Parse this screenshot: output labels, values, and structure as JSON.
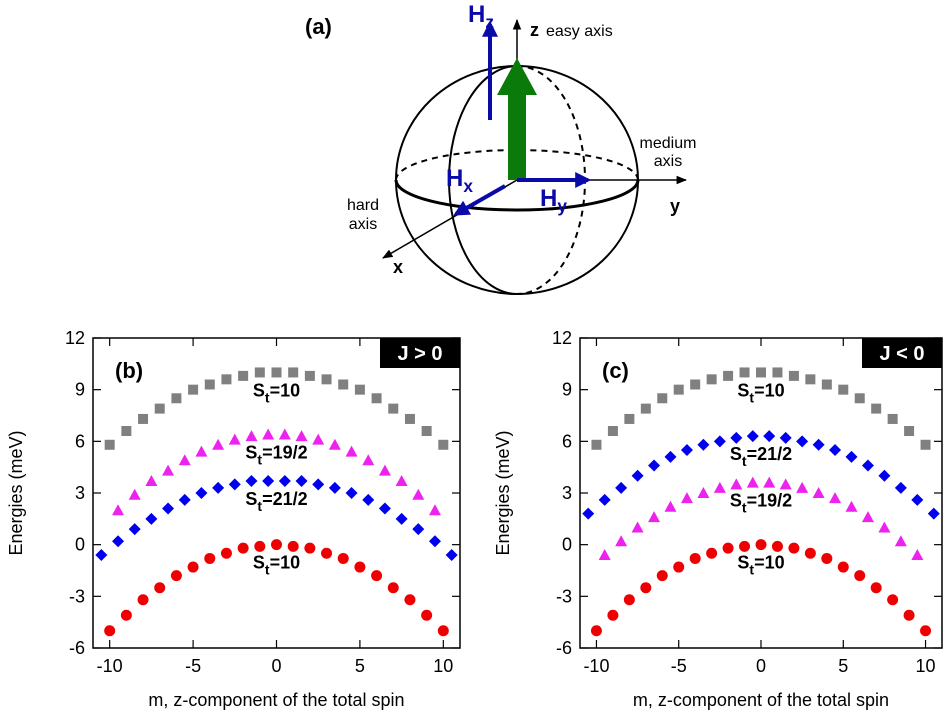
{
  "diagram": {
    "label": "(a)",
    "field_z": {
      "base": "H",
      "sub": "z"
    },
    "field_x": {
      "base": "H",
      "sub": "x"
    },
    "field_y": {
      "base": "H",
      "sub": "y"
    },
    "z_axis": "z",
    "z_axis_name": "easy axis",
    "y_axis": "y",
    "y_axis_name": [
      "medium",
      "axis"
    ],
    "x_axis": "x",
    "x_axis_name": [
      "hard",
      "axis"
    ]
  },
  "chart_data": [
    {
      "type": "scatter",
      "panel": "(b)",
      "badge": "J > 0",
      "ylabel": "Energies (meV)",
      "xlabel": "m, z-component of the total spin",
      "xlim": [
        -11,
        11
      ],
      "ylim": [
        -6,
        12
      ],
      "xticks": [
        -10,
        -5,
        0,
        5,
        10
      ],
      "yticks": [
        -6,
        -3,
        0,
        3,
        6,
        9,
        12
      ],
      "series": [
        {
          "label": [
            "S",
            "t",
            "=10"
          ],
          "color": "#808080",
          "marker": "square",
          "x": [
            -10,
            -9,
            -8,
            -7,
            -6,
            -5,
            -4,
            -3,
            -2,
            -1,
            0,
            1,
            2,
            3,
            4,
            5,
            6,
            7,
            8,
            9,
            10
          ],
          "values": [
            5.8,
            6.6,
            7.3,
            7.9,
            8.5,
            9,
            9.3,
            9.6,
            9.8,
            10,
            10,
            10,
            9.8,
            9.6,
            9.3,
            9,
            8.5,
            7.9,
            7.3,
            6.6,
            5.8
          ]
        },
        {
          "label": [
            "S",
            "t",
            "=19/2"
          ],
          "color": "#ee22ee",
          "marker": "triangle",
          "x": [
            -9.5,
            -8.5,
            -7.5,
            -6.5,
            -5.5,
            -4.5,
            -3.5,
            -2.5,
            -1.5,
            -0.5,
            0.5,
            1.5,
            2.5,
            3.5,
            4.5,
            5.5,
            6.5,
            7.5,
            8.5,
            9.5
          ],
          "values": [
            2,
            2.9,
            3.7,
            4.3,
            4.9,
            5.4,
            5.8,
            6.1,
            6.3,
            6.4,
            6.4,
            6.3,
            6.1,
            5.8,
            5.4,
            4.9,
            4.3,
            3.7,
            2.9,
            2
          ]
        },
        {
          "label": [
            "S",
            "t",
            "=21/2"
          ],
          "color": "#0000ee",
          "marker": "diamond",
          "x": [
            -10.5,
            -9.5,
            -8.5,
            -7.5,
            -6.5,
            -5.5,
            -4.5,
            -3.5,
            -2.5,
            -1.5,
            -0.5,
            0.5,
            1.5,
            2.5,
            3.5,
            4.5,
            5.5,
            6.5,
            7.5,
            8.5,
            9.5,
            10.5
          ],
          "values": [
            -0.6,
            0.2,
            0.9,
            1.5,
            2.1,
            2.6,
            3,
            3.3,
            3.5,
            3.7,
            3.7,
            3.7,
            3.7,
            3.5,
            3.3,
            3,
            2.6,
            2.1,
            1.5,
            0.9,
            0.2,
            -0.6
          ]
        },
        {
          "label": [
            "S",
            "t",
            "=10"
          ],
          "color": "#ee0000",
          "marker": "circle",
          "x": [
            -10,
            -9,
            -8,
            -7,
            -6,
            -5,
            -4,
            -3,
            -2,
            -1,
            0,
            1,
            2,
            3,
            4,
            5,
            6,
            7,
            8,
            9,
            10
          ],
          "values": [
            -5,
            -4.1,
            -3.2,
            -2.5,
            -1.8,
            -1.3,
            -0.8,
            -0.5,
            -0.2,
            -0.1,
            0,
            -0.1,
            -0.2,
            -0.5,
            -0.8,
            -1.3,
            -1.8,
            -2.5,
            -3.2,
            -4.1,
            -5
          ]
        }
      ]
    },
    {
      "type": "scatter",
      "panel": "(c)",
      "badge": "J < 0",
      "ylabel": "Energies (meV)",
      "xlabel": "m, z-component of the total spin",
      "xlim": [
        -11,
        11
      ],
      "ylim": [
        -6,
        12
      ],
      "xticks": [
        -10,
        -5,
        0,
        5,
        10
      ],
      "yticks": [
        -6,
        -3,
        0,
        3,
        6,
        9,
        12
      ],
      "series": [
        {
          "label": [
            "S",
            "t",
            "=10"
          ],
          "color": "#808080",
          "marker": "square",
          "x": [
            -10,
            -9,
            -8,
            -7,
            -6,
            -5,
            -4,
            -3,
            -2,
            -1,
            0,
            1,
            2,
            3,
            4,
            5,
            6,
            7,
            8,
            9,
            10
          ],
          "values": [
            5.8,
            6.6,
            7.3,
            7.9,
            8.5,
            9,
            9.3,
            9.6,
            9.8,
            10,
            10,
            10,
            9.8,
            9.6,
            9.3,
            9,
            8.5,
            7.9,
            7.3,
            6.6,
            5.8
          ]
        },
        {
          "label": [
            "S",
            "t",
            "=21/2"
          ],
          "color": "#0000ee",
          "marker": "diamond",
          "x": [
            -10.5,
            -9.5,
            -8.5,
            -7.5,
            -6.5,
            -5.5,
            -4.5,
            -3.5,
            -2.5,
            -1.5,
            -0.5,
            0.5,
            1.5,
            2.5,
            3.5,
            4.5,
            5.5,
            6.5,
            7.5,
            8.5,
            9.5,
            10.5
          ],
          "values": [
            1.8,
            2.6,
            3.3,
            4,
            4.6,
            5.1,
            5.5,
            5.8,
            6,
            6.2,
            6.3,
            6.3,
            6.2,
            6,
            5.8,
            5.5,
            5.1,
            4.6,
            4,
            3.3,
            2.6,
            1.8
          ]
        },
        {
          "label": [
            "S",
            "t",
            "=19/2"
          ],
          "color": "#ee22ee",
          "marker": "triangle",
          "x": [
            -9.5,
            -8.5,
            -7.5,
            -6.5,
            -5.5,
            -4.5,
            -3.5,
            -2.5,
            -1.5,
            -0.5,
            0.5,
            1.5,
            2.5,
            3.5,
            4.5,
            5.5,
            6.5,
            7.5,
            8.5,
            9.5
          ],
          "values": [
            -0.6,
            0.2,
            1,
            1.6,
            2.2,
            2.7,
            3,
            3.3,
            3.5,
            3.6,
            3.6,
            3.5,
            3.3,
            3,
            2.7,
            2.2,
            1.6,
            1,
            0.2,
            -0.6
          ]
        },
        {
          "label": [
            "S",
            "t",
            "=10"
          ],
          "color": "#ee0000",
          "marker": "circle",
          "x": [
            -10,
            -9,
            -8,
            -7,
            -6,
            -5,
            -4,
            -3,
            -2,
            -1,
            0,
            1,
            2,
            3,
            4,
            5,
            6,
            7,
            8,
            9,
            10
          ],
          "values": [
            -5,
            -4.1,
            -3.2,
            -2.5,
            -1.8,
            -1.3,
            -0.8,
            -0.5,
            -0.2,
            -0.1,
            0,
            -0.1,
            -0.2,
            -0.5,
            -0.8,
            -1.3,
            -1.8,
            -2.5,
            -3.2,
            -4.1,
            -5
          ]
        }
      ]
    }
  ]
}
